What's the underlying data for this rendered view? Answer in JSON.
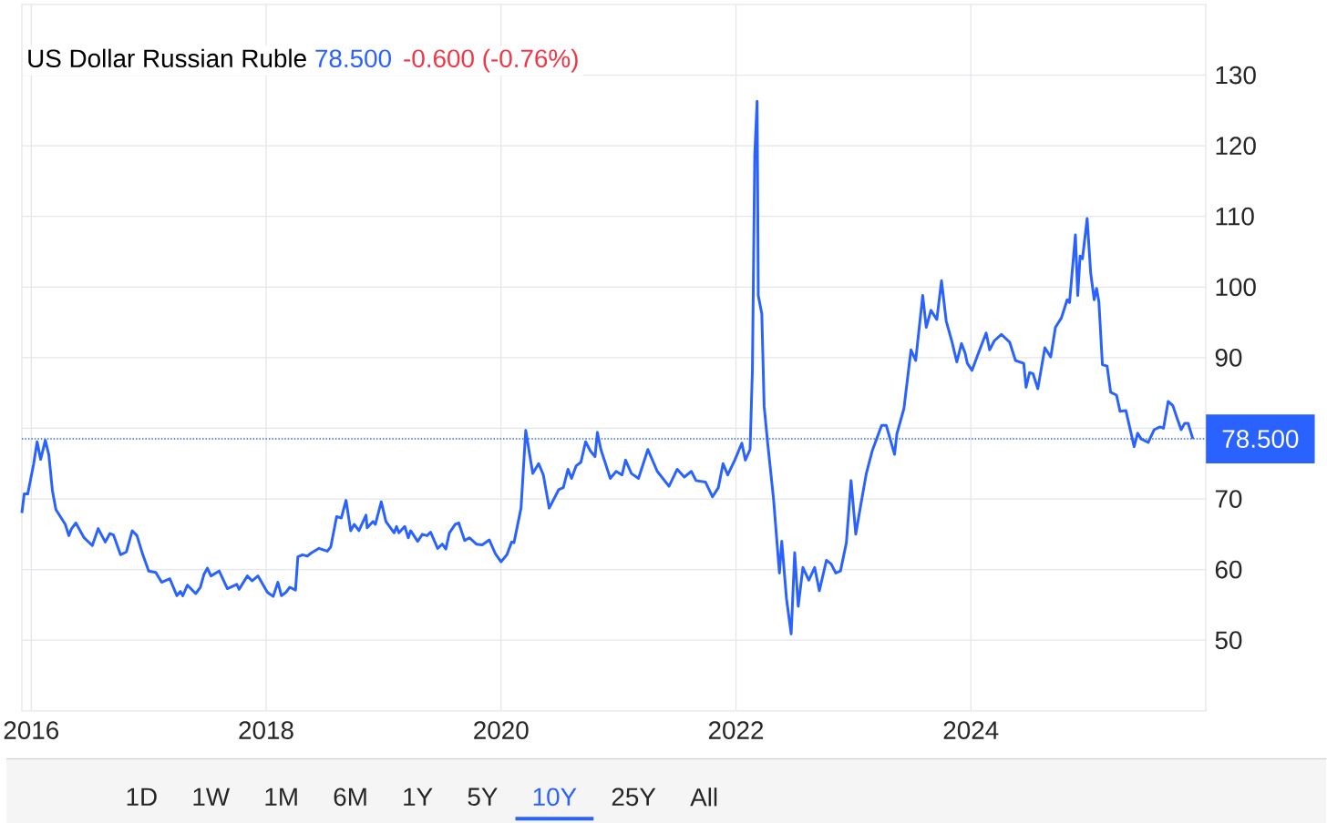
{
  "chart_data": {
    "type": "line",
    "title": "US Dollar Russian Ruble",
    "annotations": [
      "78.500",
      "-0.600 (-0.76%)",
      "1D",
      "1W",
      "1M",
      "6M",
      "1Y",
      "5Y",
      "10Y",
      "25Y",
      "All"
    ],
    "color": "#2962ff",
    "grid": true,
    "xlim": [
      2015.92,
      2026.0
    ],
    "xticks": [
      2016,
      2018,
      2020,
      2022,
      2024
    ],
    "ylim": [
      40,
      140
    ],
    "yticks": [
      50,
      60,
      70,
      {
        "value": 80,
        "label": null
      },
      90,
      100,
      110,
      120,
      130
    ],
    "ref_lines": [
      {
        "axis": "y",
        "value": 78.5,
        "label": "78.500",
        "color": "#2962ff",
        "line_style": "dotted"
      }
    ],
    "x": [
      2015.92,
      2015.94,
      2015.97,
      2016.02,
      2016.05,
      2016.08,
      2016.12,
      2016.15,
      2016.18,
      2016.21,
      2016.29,
      2016.32,
      2016.34,
      2016.38,
      2016.45,
      2016.52,
      2016.57,
      2016.63,
      2016.67,
      2016.7,
      2016.76,
      2016.81,
      2016.86,
      2016.9,
      2016.95,
      2017.0,
      2017.06,
      2017.11,
      2017.18,
      2017.24,
      2017.27,
      2017.29,
      2017.33,
      2017.4,
      2017.44,
      2017.47,
      2017.5,
      2017.53,
      2017.6,
      2017.67,
      2017.75,
      2017.77,
      2017.84,
      2017.88,
      2017.93,
      2018.01,
      2018.06,
      2018.1,
      2018.13,
      2018.17,
      2018.2,
      2018.25,
      2018.27,
      2018.31,
      2018.35,
      2018.38,
      2018.45,
      2018.52,
      2018.55,
      2018.6,
      2018.64,
      2018.68,
      2018.72,
      2018.75,
      2018.79,
      2018.85,
      2018.86,
      2018.91,
      2018.93,
      2018.98,
      2019.02,
      2019.09,
      2019.11,
      2019.13,
      2019.18,
      2019.21,
      2019.23,
      2019.29,
      2019.33,
      2019.37,
      2019.4,
      2019.46,
      2019.5,
      2019.53,
      2019.56,
      2019.61,
      2019.64,
      2019.69,
      2019.73,
      2019.79,
      2019.84,
      2019.9,
      2019.95,
      2020.0,
      2020.05,
      2020.09,
      2020.11,
      2020.17,
      2020.21,
      2020.27,
      2020.32,
      2020.36,
      2020.41,
      2020.49,
      2020.53,
      2020.57,
      2020.6,
      2020.64,
      2020.68,
      2020.72,
      2020.76,
      2020.8,
      2020.82,
      2020.85,
      2020.93,
      2020.98,
      2021.03,
      2021.06,
      2021.11,
      2021.17,
      2021.25,
      2021.33,
      2021.43,
      2021.5,
      2021.56,
      2021.62,
      2021.66,
      2021.74,
      2021.8,
      2021.85,
      2021.89,
      2021.93,
      2021.99,
      2022.05,
      2022.08,
      2022.12,
      2022.14,
      2022.16,
      2022.18,
      2022.19,
      2022.22,
      2022.24,
      2022.27,
      2022.32,
      2022.37,
      2022.39,
      2022.43,
      2022.47,
      2022.5,
      2022.53,
      2022.57,
      2022.62,
      2022.67,
      2022.71,
      2022.77,
      2022.81,
      2022.85,
      2022.89,
      2022.94,
      2022.98,
      2023.02,
      2023.06,
      2023.11,
      2023.16,
      2023.24,
      2023.28,
      2023.35,
      2023.37,
      2023.43,
      2023.49,
      2023.53,
      2023.59,
      2023.62,
      2023.66,
      2023.71,
      2023.75,
      2023.79,
      2023.84,
      2023.88,
      2023.92,
      2023.95,
      2023.97,
      2024.01,
      2024.07,
      2024.13,
      2024.16,
      2024.2,
      2024.26,
      2024.33,
      2024.38,
      2024.45,
      2024.47,
      2024.5,
      2024.53,
      2024.57,
      2024.63,
      2024.68,
      2024.72,
      2024.77,
      2024.82,
      2024.84,
      2024.89,
      2024.91,
      2024.93,
      2024.95,
      2024.99,
      2025.02,
      2025.05,
      2025.07,
      2025.09,
      2025.12,
      2025.16,
      2025.19,
      2025.24,
      2025.27,
      2025.32,
      2025.39,
      2025.42,
      2025.45,
      2025.51,
      2025.56,
      2025.61,
      2025.64,
      2025.68,
      2025.72,
      2025.75,
      2025.79,
      2025.82,
      2025.85,
      2025.89
    ],
    "values": [
      68.0,
      70.7,
      70.7,
      74.9,
      78.1,
      75.6,
      78.3,
      76.2,
      71.2,
      68.5,
      66.4,
      64.8,
      65.7,
      66.6,
      64.5,
      63.4,
      65.8,
      63.9,
      65.1,
      64.9,
      62.1,
      62.5,
      65.5,
      64.8,
      62.1,
      59.8,
      59.6,
      58.2,
      58.7,
      56.3,
      56.9,
      56.3,
      57.8,
      56.6,
      57.5,
      59.3,
      60.2,
      59.1,
      59.8,
      57.3,
      57.9,
      57.2,
      59.1,
      58.4,
      59.1,
      56.8,
      56.2,
      58.2,
      56.3,
      56.8,
      57.5,
      57.1,
      61.8,
      62.1,
      61.9,
      62.3,
      63.0,
      62.6,
      63.2,
      67.5,
      67.3,
      69.8,
      65.5,
      66.4,
      65.5,
      67.7,
      65.9,
      66.8,
      66.4,
      69.6,
      66.8,
      65.2,
      66.1,
      65.2,
      66.1,
      64.5,
      65.5,
      64.0,
      65.0,
      64.8,
      65.3,
      63.0,
      63.6,
      62.9,
      65.2,
      66.4,
      66.6,
      64.1,
      64.5,
      63.6,
      63.5,
      64.2,
      62.3,
      61.1,
      62.1,
      63.9,
      63.8,
      68.7,
      79.7,
      73.6,
      75.0,
      73.4,
      68.7,
      71.3,
      71.6,
      74.2,
      72.9,
      74.7,
      75.2,
      78.1,
      76.8,
      76.0,
      79.4,
      77.0,
      72.9,
      73.9,
      73.4,
      75.5,
      73.6,
      72.9,
      77.0,
      73.9,
      71.8,
      74.2,
      73.1,
      73.9,
      72.6,
      72.4,
      70.3,
      71.6,
      75.0,
      73.4,
      75.5,
      77.9,
      75.5,
      77.0,
      88.3,
      118.7,
      126.3,
      98.8,
      96.2,
      83.1,
      77.9,
      70.0,
      59.5,
      64.0,
      55.9,
      50.9,
      62.4,
      54.8,
      60.3,
      58.5,
      60.3,
      57.0,
      61.3,
      60.8,
      59.5,
      59.8,
      63.8,
      72.6,
      65.0,
      68.9,
      73.6,
      76.8,
      80.4,
      80.4,
      76.3,
      79.2,
      82.8,
      91.1,
      89.6,
      98.8,
      94.3,
      96.7,
      95.4,
      100.9,
      95.2,
      92.2,
      89.4,
      92.0,
      90.7,
      89.2,
      88.2,
      90.9,
      93.5,
      91.1,
      92.4,
      93.3,
      92.2,
      89.6,
      89.2,
      85.8,
      87.9,
      87.7,
      85.6,
      91.4,
      90.1,
      94.3,
      95.6,
      98.2,
      97.8,
      107.4,
      98.8,
      104.4,
      104.0,
      109.7,
      102.0,
      98.2,
      99.8,
      97.9,
      89.0,
      88.8,
      85.1,
      84.7,
      82.4,
      82.5,
      77.4,
      79.3,
      78.5,
      78.0,
      79.8,
      80.2,
      80.0,
      83.8,
      83.2,
      81.7,
      79.8,
      80.7,
      80.7,
      78.5
    ]
  }
}
